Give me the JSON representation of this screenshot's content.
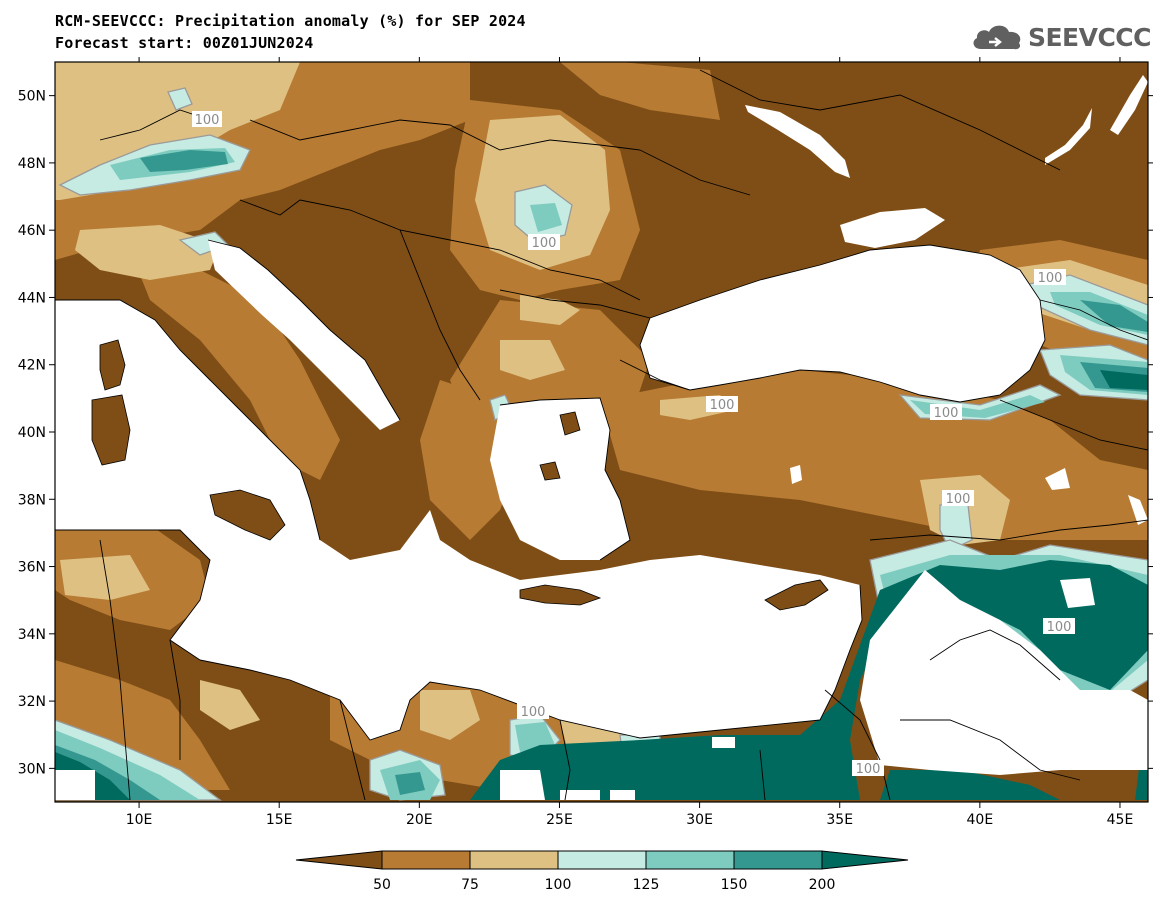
{
  "header": {
    "title": "RCM-SEEVCCC: Precipitation anomaly (%) for SEP 2024",
    "subtitle": "Forecast start: 00Z01JUN2024"
  },
  "logo": {
    "text": "SEEVCCC",
    "icon": "cloud-icon",
    "color": "#606060"
  },
  "chart_data": {
    "type": "heatmap",
    "variable": "Precipitation anomaly (%)",
    "x_axis": {
      "range": [
        7,
        46
      ],
      "ticks": [
        "10E",
        "15E",
        "20E",
        "25E",
        "30E",
        "35E",
        "40E",
        "45E"
      ],
      "tick_values": [
        10,
        15,
        20,
        25,
        30,
        35,
        40,
        45
      ]
    },
    "y_axis": {
      "range": [
        29,
        51
      ],
      "ticks": [
        "50N",
        "48N",
        "46N",
        "44N",
        "42N",
        "40N",
        "38N",
        "36N",
        "34N",
        "32N",
        "30N"
      ],
      "tick_values": [
        50,
        48,
        46,
        44,
        42,
        40,
        38,
        36,
        34,
        32,
        30
      ]
    },
    "contour_labels": [
      "100",
      "100",
      "100",
      "100",
      "100",
      "100",
      "100",
      "100",
      "100"
    ],
    "colorbar": {
      "labels": [
        "50",
        "75",
        "100",
        "125",
        "150",
        "200"
      ],
      "colors": [
        "#7f4e16",
        "#b77b33",
        "#dfc083",
        "#c6ebe3",
        "#7ecbbf",
        "#359890",
        "#006a5e"
      ]
    }
  }
}
